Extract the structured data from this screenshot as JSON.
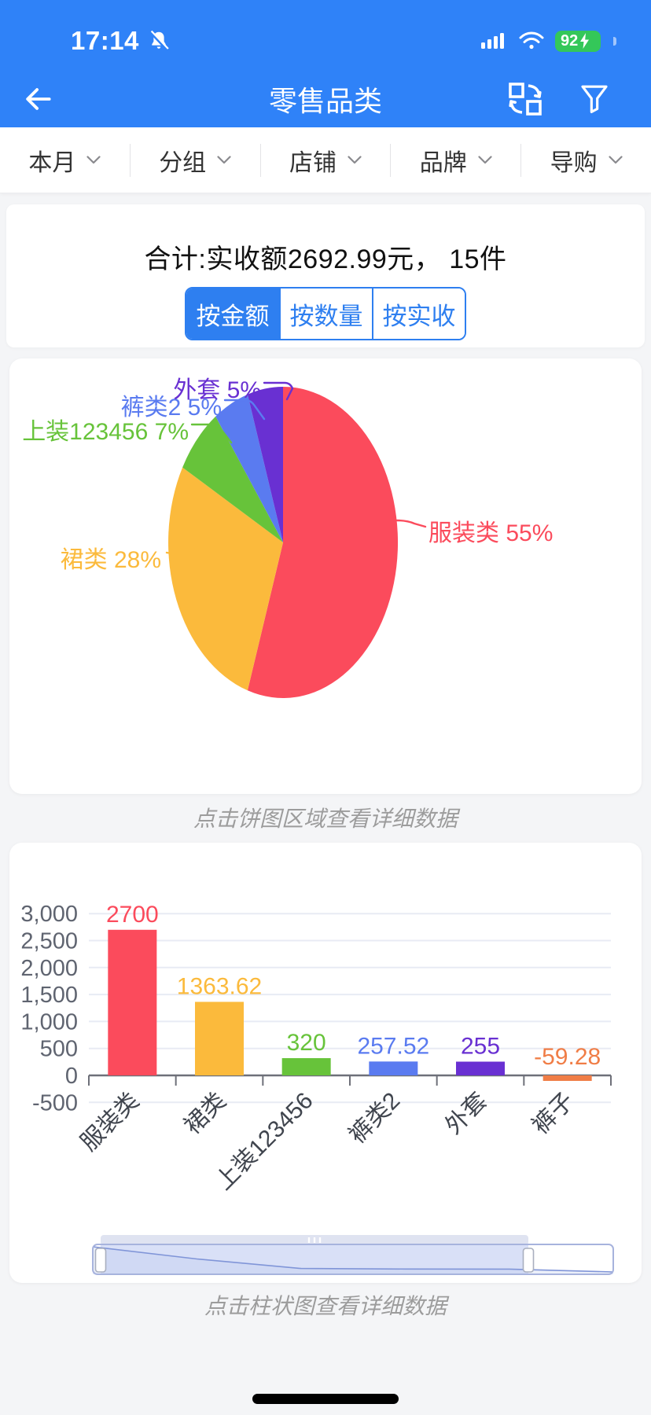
{
  "status_bar": {
    "time": "17:14",
    "battery_percent": "92"
  },
  "nav": {
    "title": "零售品类"
  },
  "icons": {
    "back": "arrow-left-icon",
    "muted": "bell-slash-icon",
    "signal": "cellular-signal-icon",
    "wifi": "wifi-icon",
    "battery": "battery-charging-icon",
    "swap": "swap-squares-icon",
    "filter": "funnel-icon",
    "chevron": "chevron-down-icon"
  },
  "filter_bar": {
    "items": [
      {
        "label": "本月"
      },
      {
        "label": "分组"
      },
      {
        "label": "店铺"
      },
      {
        "label": "品牌"
      },
      {
        "label": "导购"
      }
    ]
  },
  "summary": {
    "title": "合计:实收额2692.99元， 15件"
  },
  "view_tabs": [
    {
      "label": "按金额",
      "active": true
    },
    {
      "label": "按数量",
      "active": false
    },
    {
      "label": "按实收",
      "active": false
    }
  ],
  "pie_card": {
    "caption": "点击饼图区域查看详细数据"
  },
  "bar_card": {
    "caption": "点击柱状图查看详细数据"
  },
  "colors": {
    "header_blue": "#2F82F8",
    "accent_blue": "#2E7FF0",
    "battery_green": "#34C759",
    "red": "#FB4B5C",
    "yellow": "#FBBA3C",
    "green": "#67C33A",
    "blue": "#5A7BF0",
    "purple": "#6930D2",
    "orange": "#F07D46"
  },
  "chart_data": [
    {
      "type": "pie",
      "title": "",
      "label_format": "{name} {percent}%",
      "slices": [
        {
          "name": "服装类",
          "percent": 55,
          "color": "#FB4B5C"
        },
        {
          "name": "裙类",
          "percent": 28,
          "color": "#FBBA3C"
        },
        {
          "name": "上装123456",
          "percent": 7,
          "color": "#67C33A"
        },
        {
          "name": "裤类2",
          "percent": 5,
          "color": "#5A7BF0"
        },
        {
          "name": "外套",
          "percent": 5,
          "color": "#6930D2"
        }
      ],
      "legend_position": "none",
      "start_angle": "top",
      "direction": "clockwise"
    },
    {
      "type": "bar",
      "title": "",
      "categories": [
        "服装类",
        "裙类",
        "上装123456",
        "裤类2",
        "外套",
        "裤子"
      ],
      "values": [
        2700,
        1363.62,
        320,
        257.52,
        255,
        -59.28
      ],
      "bar_colors": [
        "#FB4B5C",
        "#FBBA3C",
        "#67C33A",
        "#5A7BF0",
        "#6930D2",
        "#F07D46"
      ],
      "value_labels": [
        "2700",
        "1363.62",
        "320",
        "257.52",
        "255",
        "-59.28"
      ],
      "xlabel": "",
      "ylabel": "",
      "ylim": [
        -500,
        3000
      ],
      "ytick_step": 500,
      "yticks": [
        "3,000",
        "2,500",
        "2,000",
        "1,500",
        "1,000",
        "500",
        "0",
        "-500"
      ],
      "grid": true,
      "xlabel_rotation": 45,
      "has_datazoom_slider": true,
      "datazoom_range": [
        0,
        82
      ]
    }
  ]
}
